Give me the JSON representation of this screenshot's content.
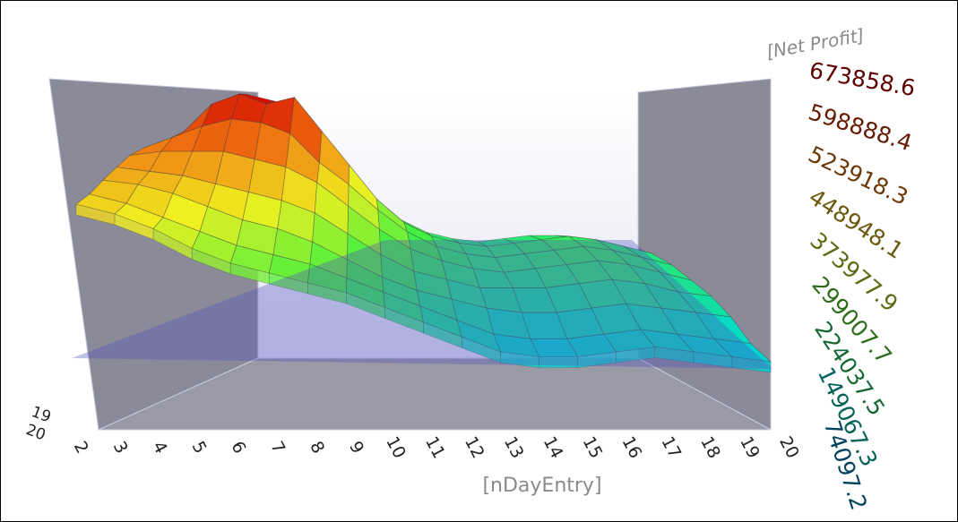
{
  "chart_data": {
    "type": "surface",
    "x_label": "[nDayEntry]",
    "z_label": "[Net Profit]",
    "x": [
      2,
      3,
      4,
      5,
      6,
      7,
      8,
      9,
      10,
      11,
      12,
      13,
      14,
      15,
      16,
      17,
      18,
      19,
      20
    ],
    "depth": [
      20,
      19,
      null,
      null,
      null,
      null,
      null,
      null
    ],
    "zlim": [
      0,
      673858.6
    ],
    "zticks": [
      74097.2,
      149067.3,
      224037.5,
      299007.7,
      373977.9,
      448948.1,
      523918.3,
      598888.4,
      673858.6
    ],
    "colormap": [
      "#0040c0",
      "#00d8d0",
      "#40f040",
      "#f0f020",
      "#f07010",
      "#d00000"
    ],
    "rows": [
      [
        440000,
        420000,
        390000,
        350000,
        320000,
        300000,
        280000,
        260000,
        230000,
        200000,
        170000,
        140000,
        130000,
        130000,
        140000,
        150000,
        140000,
        130000,
        120000
      ],
      [
        450000,
        430000,
        400000,
        370000,
        340000,
        320000,
        300000,
        270000,
        240000,
        210000,
        180000,
        150000,
        140000,
        140000,
        150000,
        160000,
        150000,
        140000,
        130000
      ],
      [
        470000,
        460000,
        440000,
        410000,
        380000,
        360000,
        330000,
        290000,
        250000,
        220000,
        200000,
        180000,
        170000,
        170000,
        180000,
        190000,
        180000,
        170000,
        160000
      ],
      [
        490000,
        480000,
        470000,
        450000,
        430000,
        410000,
        380000,
        330000,
        280000,
        240000,
        220000,
        200000,
        200000,
        200000,
        210000,
        220000,
        210000,
        190000,
        180000
      ],
      [
        510000,
        520000,
        520000,
        520000,
        500000,
        480000,
        440000,
        380000,
        320000,
        270000,
        240000,
        220000,
        210000,
        220000,
        230000,
        240000,
        230000,
        210000,
        190000
      ],
      [
        520000,
        550000,
        580000,
        600000,
        590000,
        560000,
        480000,
        420000,
        350000,
        290000,
        250000,
        230000,
        220000,
        230000,
        240000,
        250000,
        240000,
        220000,
        200000
      ],
      [
        500000,
        560000,
        640000,
        670000,
        640000,
        660000,
        560000,
        460000,
        360000,
        290000,
        250000,
        230000,
        220000,
        230000,
        240000,
        250000,
        240000,
        220000,
        200000
      ],
      [
        450000,
        540000,
        620000,
        670000,
        650000,
        630000,
        540000,
        440000,
        340000,
        270000,
        230000,
        210000,
        200000,
        210000,
        220000,
        220000,
        210000,
        190000,
        170000
      ]
    ]
  }
}
